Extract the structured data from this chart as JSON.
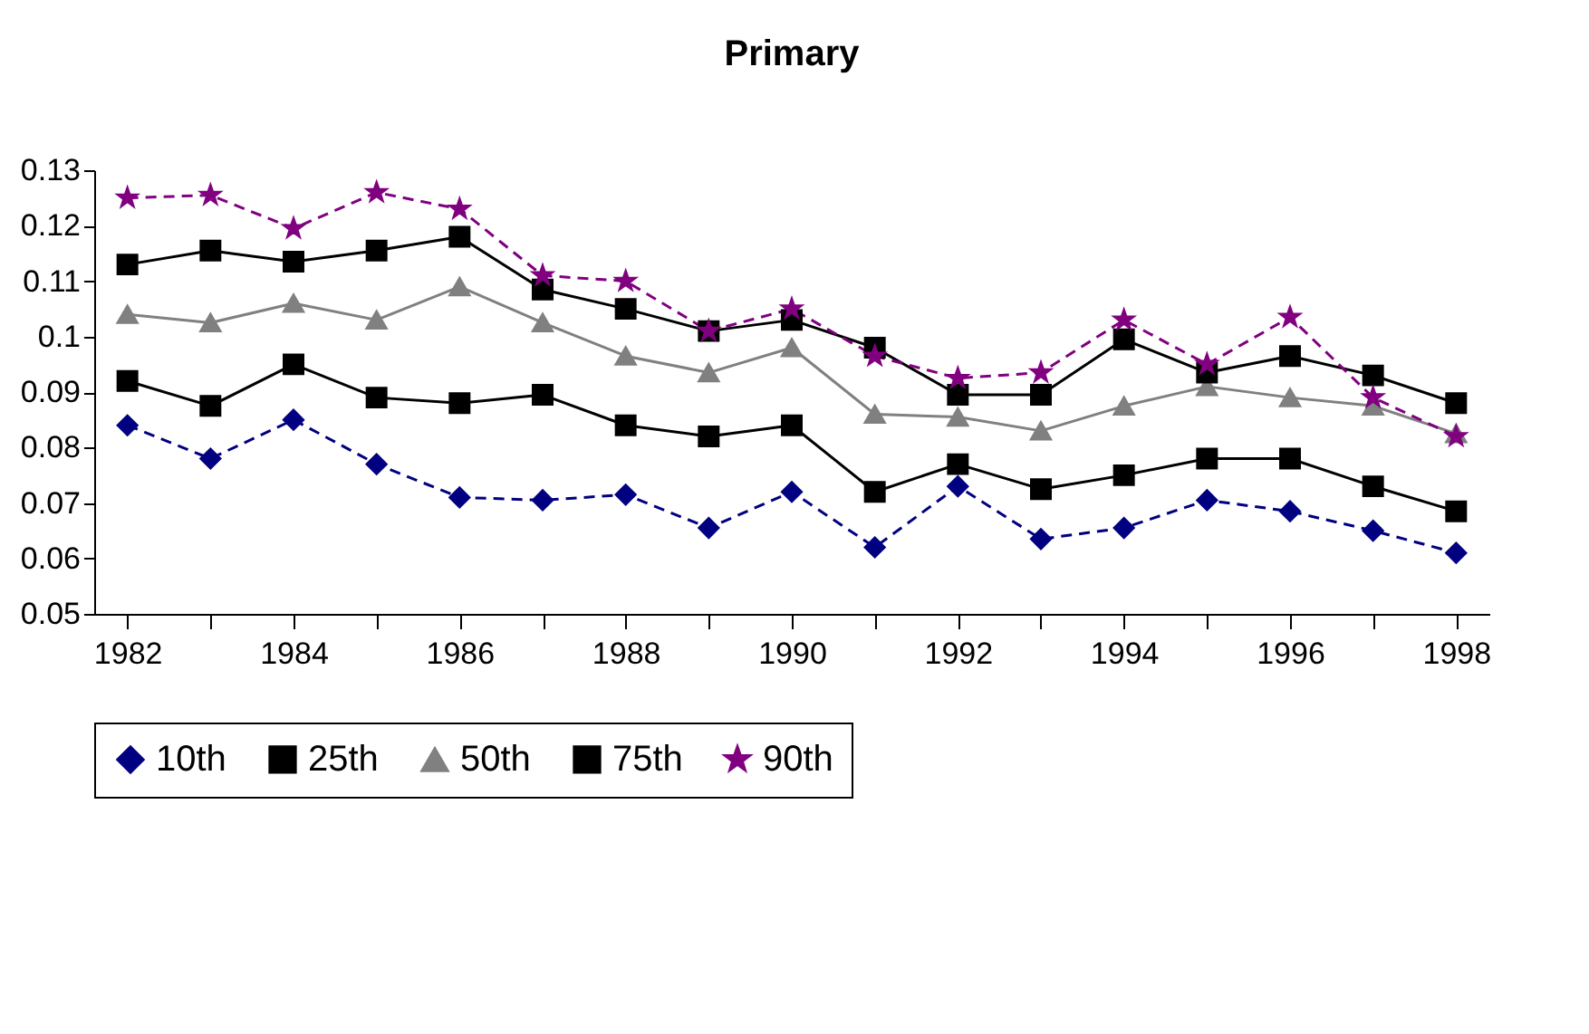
{
  "chart_data": {
    "type": "line",
    "title": "Primary",
    "x": [
      1982,
      1983,
      1984,
      1985,
      1986,
      1987,
      1988,
      1989,
      1990,
      1991,
      1992,
      1993,
      1994,
      1995,
      1996,
      1997,
      1998
    ],
    "series": [
      {
        "name": "10th",
        "color": "#000080",
        "marker": "diamond",
        "line_style": "dashed",
        "values": [
          0.084,
          0.078,
          0.085,
          0.077,
          0.071,
          0.0705,
          0.0715,
          0.0655,
          0.072,
          0.062,
          0.073,
          0.0635,
          0.0655,
          0.0705,
          0.0685,
          0.065,
          0.061
        ]
      },
      {
        "name": "25th",
        "color": "#000000",
        "marker": "square",
        "line_style": "solid",
        "values": [
          0.092,
          0.0875,
          0.095,
          0.089,
          0.088,
          0.0895,
          0.084,
          0.082,
          0.084,
          0.072,
          0.077,
          0.0725,
          0.075,
          0.078,
          0.078,
          0.073,
          0.0685
        ]
      },
      {
        "name": "50th",
        "color": "#808080",
        "marker": "triangle",
        "line_style": "solid",
        "values": [
          0.104,
          0.1025,
          0.106,
          0.103,
          0.109,
          0.1025,
          0.0965,
          0.0935,
          0.098,
          0.086,
          0.0855,
          0.083,
          0.0875,
          0.091,
          0.089,
          0.0875,
          0.0825
        ]
      },
      {
        "name": "75th",
        "color": "#000000",
        "marker": "square",
        "line_style": "solid",
        "values": [
          0.113,
          0.1155,
          0.1135,
          0.1155,
          0.118,
          0.1085,
          0.105,
          0.101,
          0.103,
          0.098,
          0.0895,
          0.0895,
          0.0995,
          0.0935,
          0.0965,
          0.093,
          0.088
        ]
      },
      {
        "name": "90th",
        "color": "#800080",
        "marker": "star",
        "line_style": "dashed",
        "values": [
          0.125,
          0.1255,
          0.1195,
          0.126,
          0.123,
          0.111,
          0.11,
          0.101,
          0.105,
          0.0965,
          0.0925,
          0.0935,
          0.103,
          0.095,
          0.1035,
          0.089,
          0.082
        ]
      }
    ],
    "xlim": [
      1981.6,
      1998.4
    ],
    "xticks": [
      1982,
      {
        "value": 1983,
        "label": null
      },
      1984,
      {
        "value": 1985,
        "label": null
      },
      1986,
      {
        "value": 1987,
        "label": null
      },
      1988,
      {
        "value": 1989,
        "label": null
      },
      1990,
      {
        "value": 1991,
        "label": null
      },
      1992,
      {
        "value": 1993,
        "label": null
      },
      1994,
      {
        "value": 1995,
        "label": null
      },
      1996,
      {
        "value": 1997,
        "label": null
      },
      1998
    ],
    "ylim": [
      0.05,
      0.13
    ],
    "yticks": [
      0.05,
      0.06,
      0.07,
      0.08,
      0.09,
      0.1,
      0.11,
      0.12,
      0.13
    ],
    "grid": false,
    "legend": "bottom"
  }
}
